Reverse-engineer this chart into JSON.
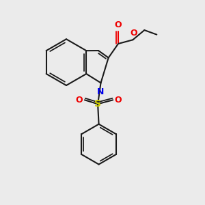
{
  "bg_color": "#ebebeb",
  "bond_color": "#1a1a1a",
  "N_color": "#0000ee",
  "O_color": "#ee0000",
  "S_color": "#cccc00",
  "lw": 1.5,
  "xlim": [
    0,
    10
  ],
  "ylim": [
    0,
    10
  ]
}
